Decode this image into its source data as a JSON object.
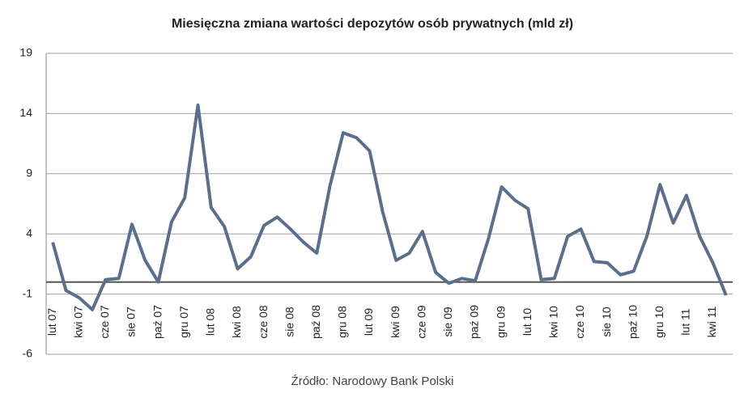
{
  "chart_data": {
    "type": "line",
    "title": "Miesięczna zmiana wartości depozytów osób prywatnych (mld zł)",
    "source": "Źródło: Narodowy Bank Polski",
    "categories": [
      "lut 07",
      null,
      "kwi 07",
      null,
      "cze 07",
      null,
      "sie 07",
      null,
      "paź 07",
      null,
      "gru 07",
      null,
      "lut 08",
      null,
      "kwi 08",
      null,
      "cze 08",
      null,
      "sie 08",
      null,
      "paź 08",
      null,
      "gru 08",
      null,
      "lut 09",
      null,
      "kwi 09",
      null,
      "cze 09",
      null,
      "sie 09",
      null,
      "paź 09",
      null,
      "gru 09",
      null,
      "lut 10",
      null,
      "kwi 10",
      null,
      "cze 10",
      null,
      "sie 10",
      null,
      "paź 10",
      null,
      "gru 10",
      null,
      "lut 11",
      null,
      "kwi 11",
      null
    ],
    "values": [
      3.3,
      -0.7,
      -1.3,
      -2.3,
      0.2,
      0.3,
      4.8,
      1.8,
      0,
      5.0,
      7.0,
      14.7,
      6.2,
      4.6,
      1.1,
      2.1,
      4.7,
      5.4,
      4.4,
      3.3,
      2.4,
      8.0,
      12.4,
      12.0,
      10.9,
      5.8,
      1.8,
      2.4,
      4.2,
      0.8,
      -0.1,
      0.3,
      0.1,
      3.6,
      7.9,
      6.8,
      6.1,
      0.2,
      0.3,
      3.8,
      4.4,
      1.7,
      1.6,
      0.6,
      0.9,
      3.8,
      8.1,
      4.9,
      7.2,
      3.8,
      1.6,
      -1.1
    ],
    "color": "#5a6f8c",
    "ylim": [
      -6,
      19
    ],
    "yticks": [
      -6,
      -1,
      4,
      9,
      14,
      19
    ],
    "grid": true
  }
}
